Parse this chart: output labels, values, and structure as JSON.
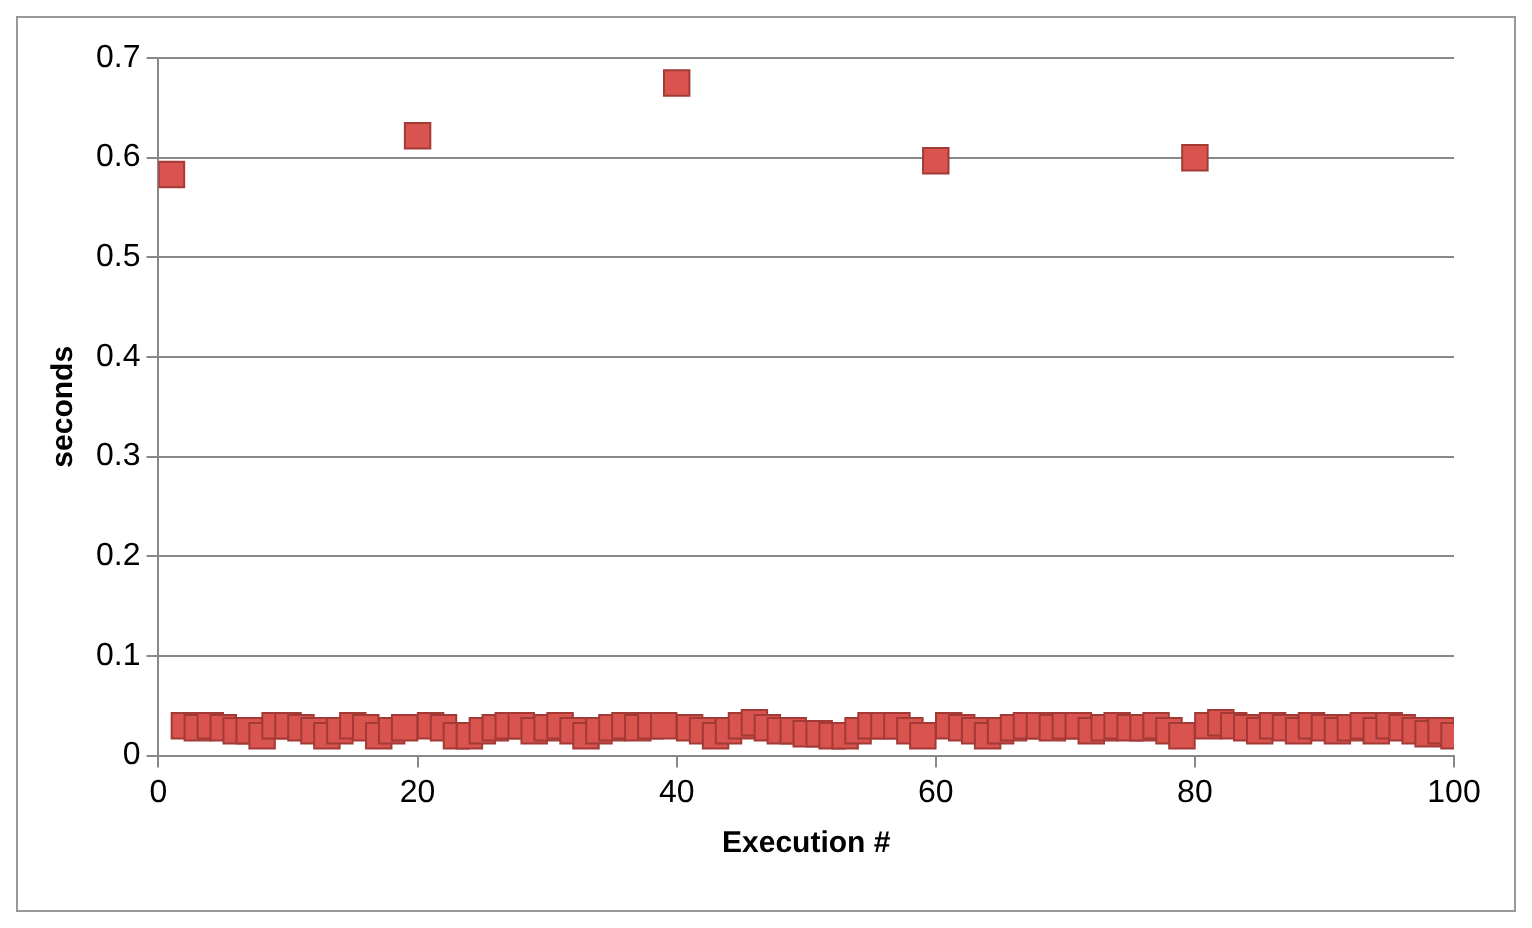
{
  "chart_data": {
    "type": "scatter",
    "xlabel": "Execution #",
    "ylabel": "seconds",
    "x": [
      1,
      2,
      3,
      4,
      5,
      6,
      7,
      8,
      9,
      10,
      11,
      12,
      13,
      14,
      15,
      16,
      17,
      18,
      19,
      20,
      21,
      22,
      23,
      24,
      25,
      26,
      27,
      28,
      29,
      30,
      31,
      32,
      33,
      34,
      35,
      36,
      37,
      38,
      39,
      40,
      41,
      42,
      43,
      44,
      45,
      46,
      47,
      48,
      49,
      50,
      51,
      52,
      53,
      54,
      55,
      56,
      57,
      58,
      59,
      60,
      61,
      62,
      63,
      64,
      65,
      66,
      67,
      68,
      69,
      70,
      71,
      72,
      73,
      74,
      75,
      76,
      77,
      78,
      79,
      80,
      81,
      82,
      83,
      84,
      85,
      86,
      87,
      88,
      89,
      90,
      91,
      92,
      93,
      94,
      95,
      96,
      97,
      98,
      99,
      100
    ],
    "series": [
      {
        "color": "#d9534f",
        "values": [
          0.583,
          0.03,
          0.028,
          0.03,
          0.028,
          0.025,
          0.025,
          0.02,
          0.03,
          0.03,
          0.028,
          0.025,
          0.02,
          0.025,
          0.03,
          0.028,
          0.02,
          0.025,
          0.028,
          0.622,
          0.03,
          0.028,
          0.02,
          0.02,
          0.025,
          0.028,
          0.03,
          0.03,
          0.025,
          0.028,
          0.03,
          0.025,
          0.02,
          0.025,
          0.028,
          0.03,
          0.028,
          0.03,
          0.03,
          0.675,
          0.028,
          0.025,
          0.02,
          0.025,
          0.03,
          0.033,
          0.028,
          0.025,
          0.025,
          0.022,
          0.022,
          0.02,
          0.02,
          0.025,
          0.03,
          0.03,
          0.03,
          0.025,
          0.02,
          0.597,
          0.03,
          0.028,
          0.025,
          0.02,
          0.025,
          0.028,
          0.03,
          0.03,
          0.028,
          0.03,
          0.03,
          0.025,
          0.028,
          0.03,
          0.028,
          0.028,
          0.03,
          0.025,
          0.02,
          0.6,
          0.03,
          0.033,
          0.03,
          0.028,
          0.025,
          0.03,
          0.028,
          0.025,
          0.03,
          0.028,
          0.025,
          0.028,
          0.03,
          0.025,
          0.03,
          0.028,
          0.025,
          0.022,
          0.025,
          0.02
        ]
      }
    ],
    "xlim": [
      0,
      100
    ],
    "xticks": [
      0,
      20,
      40,
      60,
      80,
      100
    ],
    "ylim": [
      0,
      0.7
    ],
    "yticks": [
      0,
      0.1,
      0.2,
      0.3,
      0.4,
      0.5,
      0.6,
      0.7
    ],
    "grid": "y",
    "legend": false,
    "marker": "square"
  }
}
